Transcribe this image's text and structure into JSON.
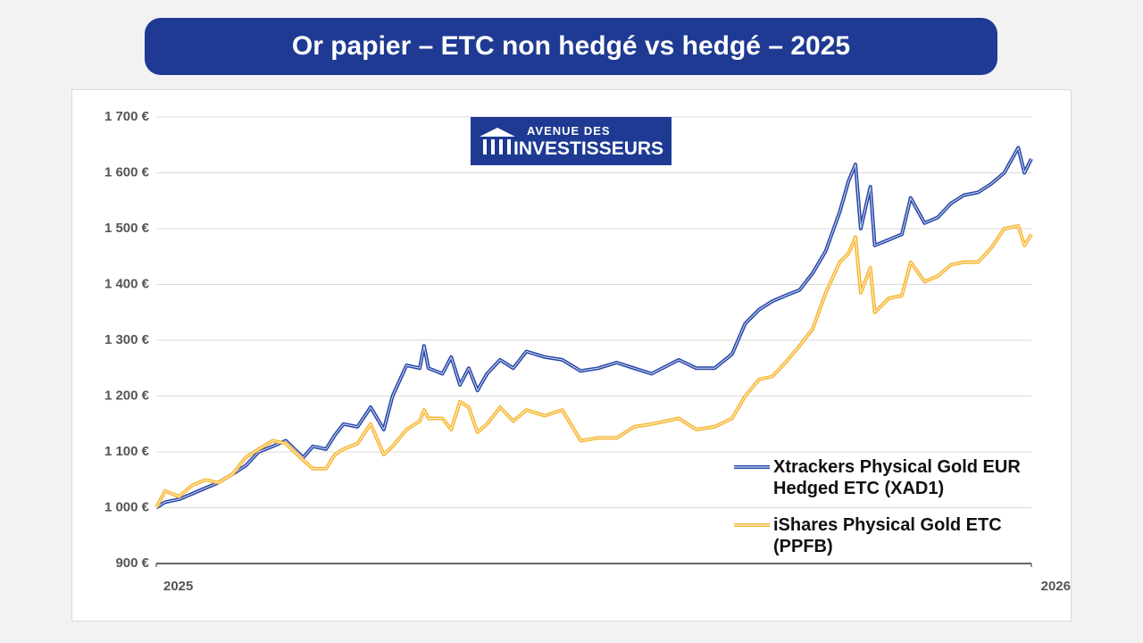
{
  "title": "Or papier – ETC non hedgé vs hedgé – 2025",
  "logo": {
    "line1": "AVENUE DES",
    "line2": "INVESTISSEURS"
  },
  "chart_data": {
    "type": "line",
    "x": [
      2025.0,
      2025.01,
      2025.026,
      2025.041,
      2025.056,
      2025.071,
      2025.087,
      2025.102,
      2025.117,
      2025.133,
      2025.148,
      2025.158,
      2025.168,
      2025.179,
      2025.194,
      2025.204,
      2025.214,
      2025.23,
      2025.245,
      2025.26,
      2025.27,
      2025.286,
      2025.301,
      2025.306,
      2025.311,
      2025.327,
      2025.337,
      2025.347,
      2025.357,
      2025.367,
      2025.378,
      2025.393,
      2025.408,
      2025.423,
      2025.444,
      2025.464,
      2025.485,
      2025.505,
      2025.526,
      2025.546,
      2025.566,
      2025.597,
      2025.617,
      2025.638,
      2025.658,
      2025.673,
      2025.689,
      2025.704,
      2025.719,
      2025.735,
      2025.75,
      2025.765,
      2025.781,
      2025.791,
      2025.799,
      2025.805,
      2025.816,
      2025.821,
      2025.837,
      2025.852,
      2025.862,
      2025.878,
      2025.893,
      2025.908,
      2025.923,
      2025.939,
      2025.954,
      2025.969,
      2025.985,
      2025.992,
      2026.0
    ],
    "series": [
      {
        "name": "Xtrackers Physical Gold EUR Hedged ETC (XAD1)",
        "color": "#2747a8",
        "values": [
          1000,
          1010,
          1015,
          1025,
          1035,
          1045,
          1060,
          1075,
          1100,
          1110,
          1120,
          1105,
          1090,
          1110,
          1105,
          1130,
          1150,
          1145,
          1180,
          1140,
          1200,
          1255,
          1250,
          1290,
          1250,
          1240,
          1270,
          1220,
          1250,
          1210,
          1240,
          1265,
          1250,
          1280,
          1270,
          1265,
          1245,
          1250,
          1260,
          1250,
          1240,
          1265,
          1250,
          1250,
          1275,
          1330,
          1355,
          1370,
          1380,
          1390,
          1420,
          1460,
          1530,
          1585,
          1615,
          1500,
          1575,
          1470,
          1480,
          1490,
          1555,
          1510,
          1520,
          1545,
          1560,
          1565,
          1580,
          1600,
          1645,
          1600,
          1625
        ]
      },
      {
        "name": "iShares Physical Gold ETC (PPFB)",
        "color": "#f7b733",
        "values": [
          1000,
          1030,
          1020,
          1040,
          1050,
          1045,
          1060,
          1090,
          1105,
          1120,
          1115,
          1100,
          1085,
          1070,
          1070,
          1095,
          1105,
          1115,
          1150,
          1095,
          1110,
          1140,
          1155,
          1175,
          1160,
          1160,
          1140,
          1190,
          1180,
          1135,
          1150,
          1180,
          1155,
          1175,
          1165,
          1175,
          1120,
          1125,
          1125,
          1145,
          1150,
          1160,
          1140,
          1145,
          1160,
          1200,
          1230,
          1235,
          1260,
          1290,
          1320,
          1385,
          1440,
          1455,
          1485,
          1385,
          1430,
          1350,
          1375,
          1380,
          1440,
          1405,
          1415,
          1435,
          1440,
          1440,
          1465,
          1500,
          1505,
          1470,
          1490
        ]
      }
    ],
    "xlim": [
      2025,
      2026
    ],
    "xticks": [
      2025,
      2026
    ],
    "ylim": [
      900,
      1700
    ],
    "yticks": [
      {
        "value": 900,
        "label": "900 €"
      },
      {
        "value": 1000,
        "label": "1 000 €"
      },
      {
        "value": 1100,
        "label": "1 100 €"
      },
      {
        "value": 1200,
        "label": "1 200 €"
      },
      {
        "value": 1300,
        "label": "1 300 €"
      },
      {
        "value": 1400,
        "label": "1 400 €"
      },
      {
        "value": 1500,
        "label": "1 500 €"
      },
      {
        "value": 1600,
        "label": "1 600 €"
      },
      {
        "value": 1700,
        "label": "1 700 €"
      }
    ],
    "grid": true,
    "legend": "lower-right"
  }
}
